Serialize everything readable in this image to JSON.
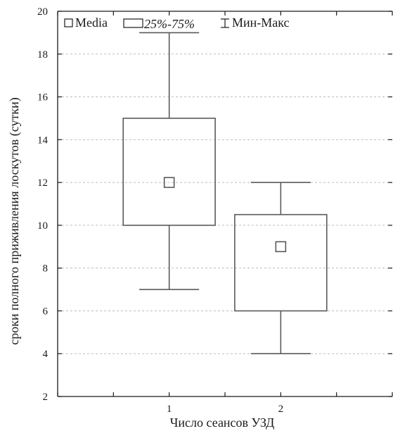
{
  "chart_data": {
    "type": "boxplot",
    "xlabel": "Число сеансов УЗД",
    "ylabel": "сроки полного приживления лоскутов (сутки)",
    "ylim": [
      2,
      20
    ],
    "yticks": [
      2,
      4,
      6,
      8,
      10,
      12,
      14,
      16,
      18,
      20
    ],
    "xlim": [
      0,
      3
    ],
    "grid": "horizontal-dashed",
    "legend_placement": "top-left",
    "legend": {
      "median": "Media",
      "box": "25%-75%",
      "whisker": "Мин-Макс"
    },
    "categories": [
      "1",
      "2"
    ],
    "boxes": [
      {
        "category": "1",
        "min": 7,
        "q1": 10,
        "median": 12,
        "q3": 15,
        "max": 19
      },
      {
        "category": "2",
        "min": 4,
        "q1": 6,
        "median": 9,
        "q3": 10.5,
        "max": 12
      }
    ],
    "colors": {
      "box_stroke": "#5a5a5a",
      "grid": "#bdbdbd",
      "axis": "#1a1a1a"
    }
  }
}
